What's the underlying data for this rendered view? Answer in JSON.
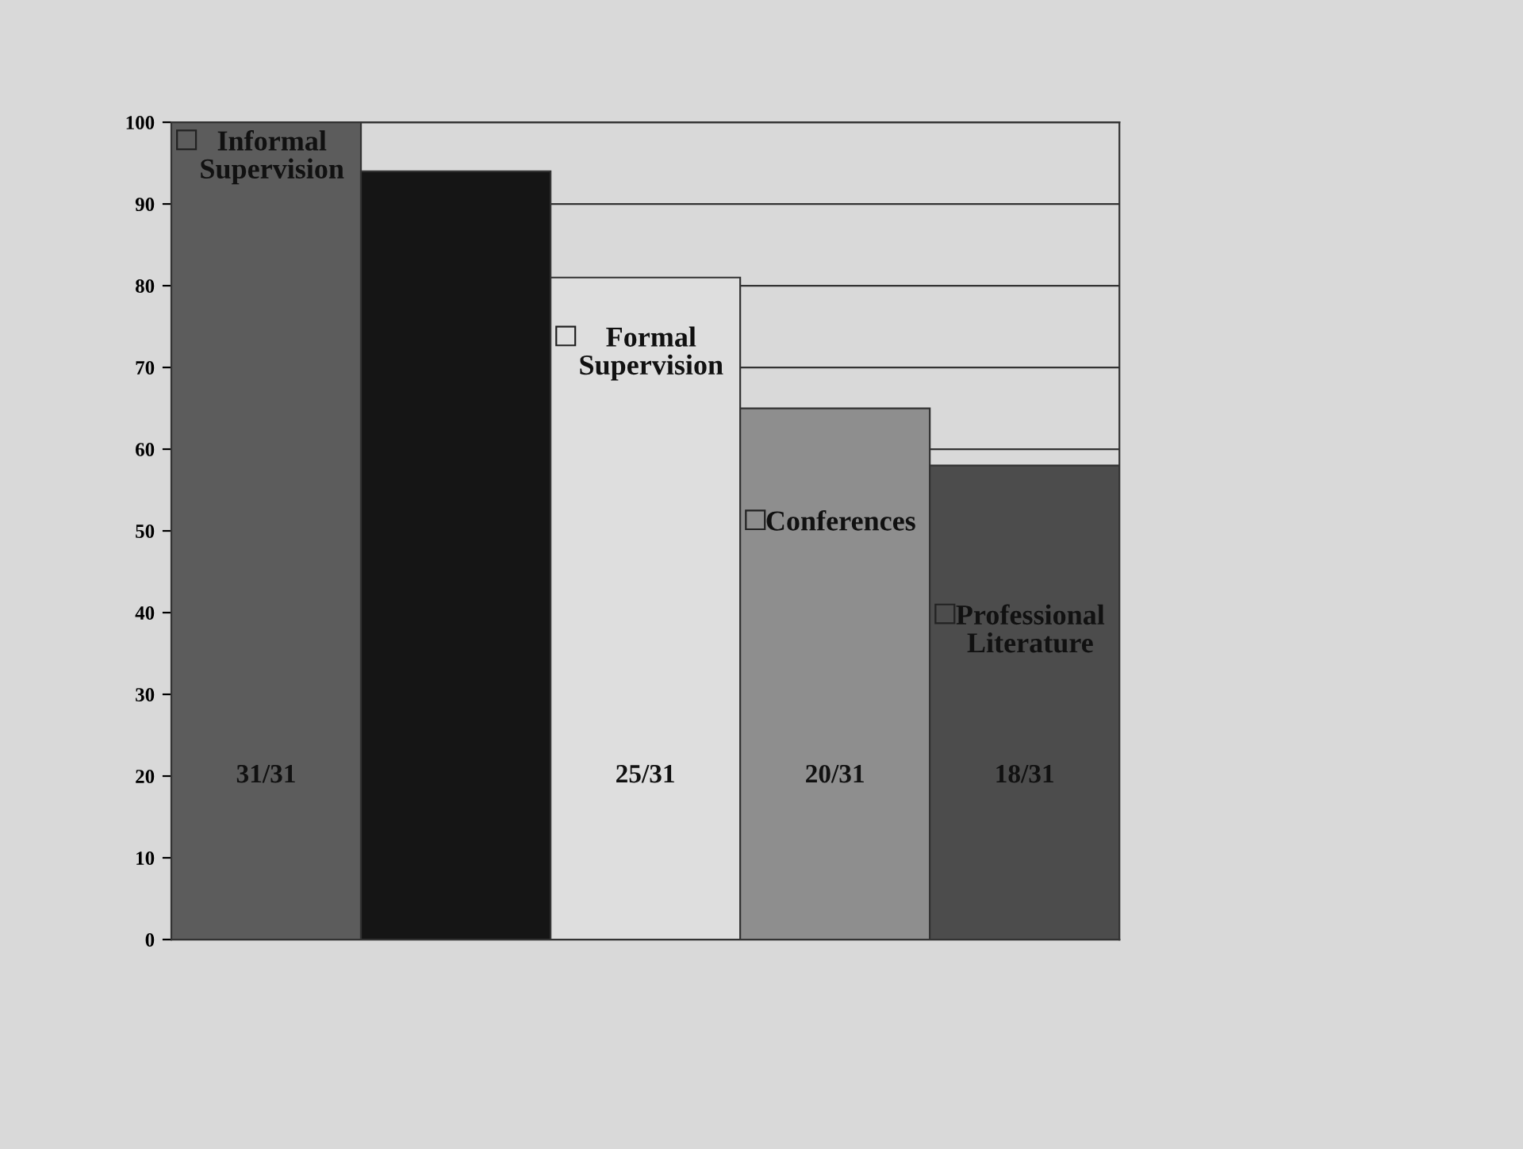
{
  "chart_data": {
    "type": "bar",
    "categories": [
      "Informal Supervision",
      null,
      "Formal Supervision",
      "Conferences",
      "Professional Literature"
    ],
    "values": [
      100,
      94,
      81,
      65,
      58
    ],
    "colors": [
      "#5c5c5c",
      "#151515",
      "#dedede",
      "#8e8e8e",
      "#4c4c4c"
    ],
    "value_labels": [
      "31/31",
      null,
      "25/31",
      "20/31",
      "18/31"
    ],
    "ylim": [
      0,
      100
    ],
    "yticks": [
      0,
      10,
      20,
      30,
      40,
      50,
      60,
      70,
      80,
      90,
      100
    ],
    "grid": "y"
  }
}
